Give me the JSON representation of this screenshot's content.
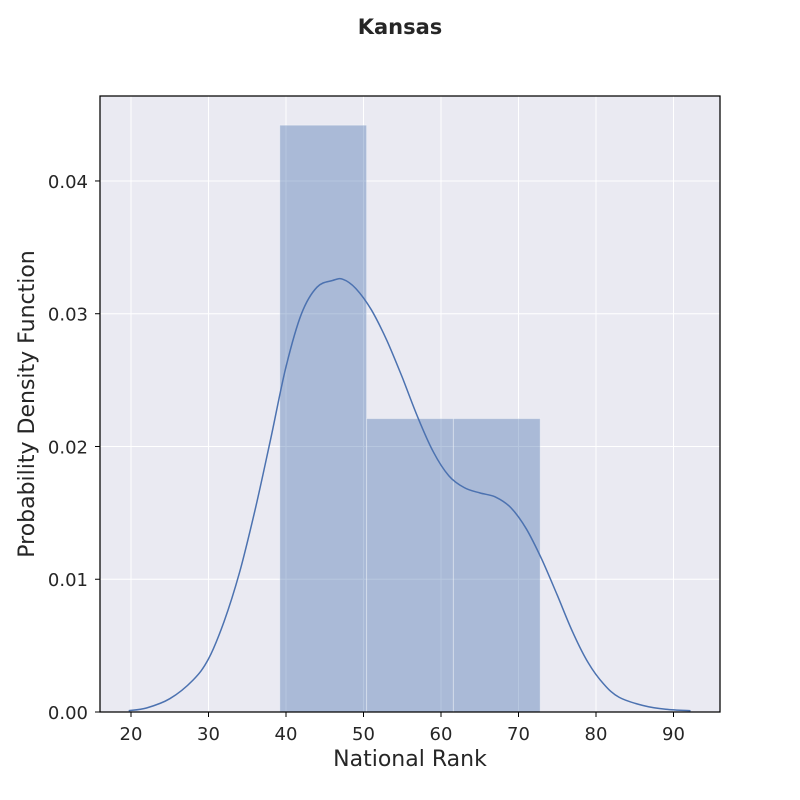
{
  "chart_data": {
    "type": "histogram",
    "title": "Kansas",
    "xlabel": "National Rank",
    "ylabel": "Probability Density Function",
    "xlim": [
      16,
      96
    ],
    "ylim": [
      0,
      0.0464
    ],
    "x_ticks": [
      20,
      30,
      40,
      50,
      60,
      70,
      80,
      90
    ],
    "y_ticks": [
      0.0,
      0.01,
      0.02,
      0.03,
      0.04
    ],
    "y_tick_labels": [
      "0.00",
      "0.01",
      "0.02",
      "0.03",
      "0.04"
    ],
    "bins": [
      {
        "x0": 39.2,
        "x1": 50.4,
        "density": 0.0442
      },
      {
        "x0": 50.4,
        "x1": 61.6,
        "density": 0.0221
      },
      {
        "x0": 61.6,
        "x1": 72.8,
        "density": 0.0221
      }
    ],
    "kde": {
      "x": [
        19.7,
        22,
        25,
        28,
        30,
        32,
        34,
        36,
        38,
        40,
        42,
        44,
        46,
        47.3,
        49,
        51,
        53,
        55,
        57,
        59,
        61,
        63,
        65,
        67,
        69,
        71,
        73,
        75,
        77,
        79,
        81,
        83,
        86,
        89,
        92.2
      ],
      "y": [
        0.0001,
        0.0003,
        0.001,
        0.0024,
        0.004,
        0.0068,
        0.0105,
        0.0152,
        0.0205,
        0.026,
        0.03,
        0.032,
        0.0325,
        0.0326,
        0.0319,
        0.0303,
        0.028,
        0.0252,
        0.0222,
        0.0196,
        0.0178,
        0.0169,
        0.0165,
        0.0162,
        0.0154,
        0.0138,
        0.0115,
        0.0088,
        0.006,
        0.0037,
        0.0021,
        0.0011,
        0.0005,
        0.0002,
        0.0001
      ]
    },
    "grid": true,
    "colors": {
      "plot_background": "#eaeaf2",
      "grid": "#ffffff",
      "bar_fill": "#4c72b0",
      "kde_line": "#4c72b0",
      "axis": "#000000"
    }
  }
}
